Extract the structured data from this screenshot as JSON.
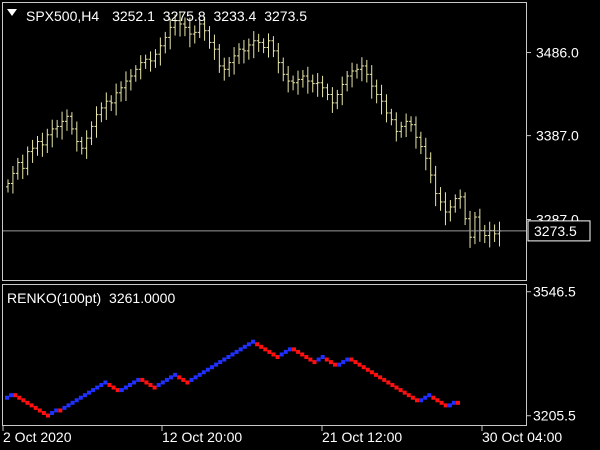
{
  "header": {
    "symbol": "SPX500,H4",
    "open": "3252.1",
    "high": "3275.8",
    "low": "3233.4",
    "close": "3273.5"
  },
  "indicator": {
    "name": "RENKO(100pt)",
    "value": "3261.0000"
  },
  "colors": {
    "background": "#000000",
    "bars": "#e8e6a8",
    "frame": "#c8c8c8",
    "renko_up": "#2030ff",
    "renko_down": "#ff1010",
    "price_line": "#9a9a9a"
  },
  "chart_data": [
    {
      "type": "bar",
      "panel": "price",
      "ylim": [
        3215,
        3545
      ],
      "y_ticks": [
        "3486.0",
        "3387.0",
        "3287.0"
      ],
      "last_price": "3273.5",
      "x_ticks": [
        "2 Oct 2020",
        "12 Oct 20:00",
        "21 Oct 12:00",
        "30 Oct 04:00"
      ],
      "close": [
        3330,
        3342,
        3355,
        3348,
        3368,
        3372,
        3380,
        3376,
        3388,
        3395,
        3398,
        3404,
        3410,
        3395,
        3380,
        3372,
        3384,
        3398,
        3412,
        3420,
        3428,
        3426,
        3438,
        3444,
        3452,
        3458,
        3466,
        3474,
        3478,
        3476,
        3484,
        3494,
        3504,
        3516,
        3524,
        3520,
        3516,
        3508,
        3510,
        3520,
        3512,
        3498,
        3490,
        3470,
        3466,
        3474,
        3482,
        3490,
        3488,
        3495,
        3500,
        3498,
        3492,
        3500,
        3488,
        3474,
        3460,
        3452,
        3450,
        3454,
        3458,
        3452,
        3449,
        3450,
        3444,
        3436,
        3426,
        3436,
        3448,
        3458,
        3464,
        3466,
        3470,
        3460,
        3446,
        3436,
        3428,
        3414,
        3406,
        3392,
        3398,
        3404,
        3400,
        3385,
        3374,
        3360,
        3340,
        3318,
        3308,
        3296,
        3302,
        3312,
        3314,
        3288,
        3266,
        3290,
        3274,
        3268,
        3274,
        3270,
        3273.5
      ]
    },
    {
      "type": "scatter",
      "panel": "renko",
      "name": "RENKO(100pt)",
      "ylim": [
        3180,
        3565
      ],
      "y_ticks": [
        "3546.5",
        "3205.5"
      ],
      "bricks": [
        {
          "y": 3255,
          "d": "up"
        },
        {
          "y": 3262,
          "d": "up"
        },
        {
          "y": 3262,
          "d": "down"
        },
        {
          "y": 3255,
          "d": "down"
        },
        {
          "y": 3248,
          "d": "down"
        },
        {
          "y": 3241,
          "d": "down"
        },
        {
          "y": 3234,
          "d": "down"
        },
        {
          "y": 3227,
          "d": "down"
        },
        {
          "y": 3220,
          "d": "down"
        },
        {
          "y": 3213,
          "d": "down"
        },
        {
          "y": 3206,
          "d": "down"
        },
        {
          "y": 3213,
          "d": "up"
        },
        {
          "y": 3220,
          "d": "up"
        },
        {
          "y": 3220,
          "d": "down"
        },
        {
          "y": 3227,
          "d": "up"
        },
        {
          "y": 3234,
          "d": "up"
        },
        {
          "y": 3241,
          "d": "up"
        },
        {
          "y": 3248,
          "d": "up"
        },
        {
          "y": 3255,
          "d": "up"
        },
        {
          "y": 3262,
          "d": "up"
        },
        {
          "y": 3269,
          "d": "up"
        },
        {
          "y": 3276,
          "d": "up"
        },
        {
          "y": 3283,
          "d": "up"
        },
        {
          "y": 3290,
          "d": "up"
        },
        {
          "y": 3297,
          "d": "up"
        },
        {
          "y": 3290,
          "d": "down"
        },
        {
          "y": 3283,
          "d": "down"
        },
        {
          "y": 3276,
          "d": "down"
        },
        {
          "y": 3276,
          "d": "up"
        },
        {
          "y": 3283,
          "d": "up"
        },
        {
          "y": 3290,
          "d": "up"
        },
        {
          "y": 3297,
          "d": "up"
        },
        {
          "y": 3304,
          "d": "up"
        },
        {
          "y": 3304,
          "d": "down"
        },
        {
          "y": 3297,
          "d": "down"
        },
        {
          "y": 3290,
          "d": "down"
        },
        {
          "y": 3283,
          "d": "down"
        },
        {
          "y": 3290,
          "d": "up"
        },
        {
          "y": 3297,
          "d": "up"
        },
        {
          "y": 3304,
          "d": "up"
        },
        {
          "y": 3311,
          "d": "up"
        },
        {
          "y": 3318,
          "d": "up"
        },
        {
          "y": 3311,
          "d": "down"
        },
        {
          "y": 3304,
          "d": "down"
        },
        {
          "y": 3297,
          "d": "down"
        },
        {
          "y": 3304,
          "d": "up"
        },
        {
          "y": 3311,
          "d": "up"
        },
        {
          "y": 3318,
          "d": "up"
        },
        {
          "y": 3325,
          "d": "up"
        },
        {
          "y": 3332,
          "d": "up"
        },
        {
          "y": 3339,
          "d": "up"
        },
        {
          "y": 3346,
          "d": "up"
        },
        {
          "y": 3353,
          "d": "up"
        },
        {
          "y": 3360,
          "d": "up"
        },
        {
          "y": 3367,
          "d": "up"
        },
        {
          "y": 3374,
          "d": "up"
        },
        {
          "y": 3381,
          "d": "up"
        },
        {
          "y": 3388,
          "d": "up"
        },
        {
          "y": 3395,
          "d": "up"
        },
        {
          "y": 3402,
          "d": "up"
        },
        {
          "y": 3409,
          "d": "up"
        },
        {
          "y": 3402,
          "d": "down"
        },
        {
          "y": 3395,
          "d": "down"
        },
        {
          "y": 3388,
          "d": "down"
        },
        {
          "y": 3381,
          "d": "down"
        },
        {
          "y": 3374,
          "d": "down"
        },
        {
          "y": 3367,
          "d": "down"
        },
        {
          "y": 3374,
          "d": "up"
        },
        {
          "y": 3381,
          "d": "up"
        },
        {
          "y": 3388,
          "d": "up"
        },
        {
          "y": 3388,
          "d": "down"
        },
        {
          "y": 3381,
          "d": "down"
        },
        {
          "y": 3374,
          "d": "down"
        },
        {
          "y": 3367,
          "d": "down"
        },
        {
          "y": 3360,
          "d": "down"
        },
        {
          "y": 3353,
          "d": "down"
        },
        {
          "y": 3360,
          "d": "up"
        },
        {
          "y": 3367,
          "d": "up"
        },
        {
          "y": 3360,
          "d": "down"
        },
        {
          "y": 3353,
          "d": "down"
        },
        {
          "y": 3346,
          "d": "down"
        },
        {
          "y": 3346,
          "d": "up"
        },
        {
          "y": 3353,
          "d": "up"
        },
        {
          "y": 3360,
          "d": "up"
        },
        {
          "y": 3360,
          "d": "down"
        },
        {
          "y": 3353,
          "d": "down"
        },
        {
          "y": 3346,
          "d": "down"
        },
        {
          "y": 3339,
          "d": "down"
        },
        {
          "y": 3332,
          "d": "down"
        },
        {
          "y": 3325,
          "d": "down"
        },
        {
          "y": 3318,
          "d": "down"
        },
        {
          "y": 3311,
          "d": "down"
        },
        {
          "y": 3304,
          "d": "down"
        },
        {
          "y": 3297,
          "d": "down"
        },
        {
          "y": 3290,
          "d": "down"
        },
        {
          "y": 3283,
          "d": "down"
        },
        {
          "y": 3276,
          "d": "down"
        },
        {
          "y": 3269,
          "d": "down"
        },
        {
          "y": 3262,
          "d": "down"
        },
        {
          "y": 3255,
          "d": "down"
        },
        {
          "y": 3248,
          "d": "down"
        },
        {
          "y": 3248,
          "d": "up"
        },
        {
          "y": 3255,
          "d": "up"
        },
        {
          "y": 3262,
          "d": "up"
        },
        {
          "y": 3255,
          "d": "down"
        },
        {
          "y": 3248,
          "d": "down"
        },
        {
          "y": 3241,
          "d": "down"
        },
        {
          "y": 3234,
          "d": "down"
        },
        {
          "y": 3234,
          "d": "up"
        },
        {
          "y": 3241,
          "d": "up"
        },
        {
          "y": 3241,
          "d": "down"
        }
      ]
    }
  ]
}
